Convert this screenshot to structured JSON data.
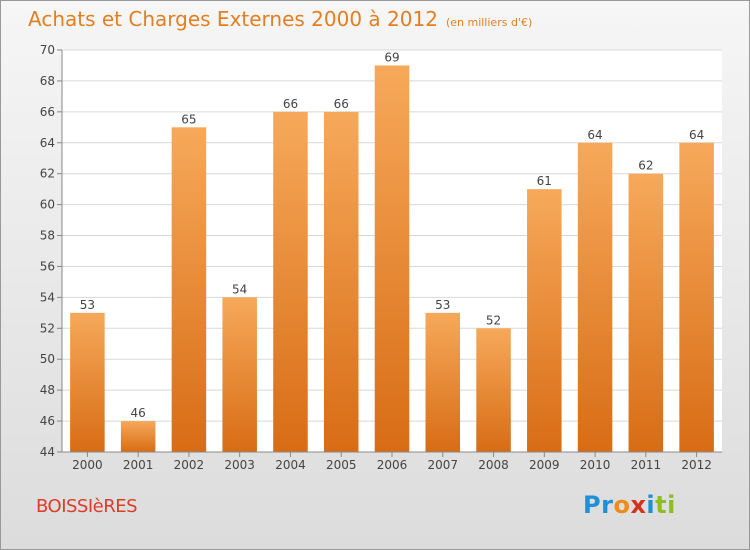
{
  "header": {
    "title": "Achats et Charges Externes 2000 à 2012",
    "unit": "(en milliers d'€)"
  },
  "footer": {
    "commune": "BOISSIèRES",
    "logo_letters": [
      "Pr",
      "o",
      "x",
      "i",
      "ti"
    ]
  },
  "colors": {
    "title": "#e37f20",
    "bar_top": "#f6a95a",
    "bar_bottom": "#d86c15",
    "commune": "#de3b2a"
  },
  "chart_data": {
    "type": "bar",
    "title": "Achats et Charges Externes 2000 à 2012",
    "subtitle": "(en milliers d'€)",
    "categories": [
      "2000",
      "2001",
      "2002",
      "2003",
      "2004",
      "2005",
      "2006",
      "2007",
      "2008",
      "2009",
      "2010",
      "2011",
      "2012"
    ],
    "values": [
      53,
      46,
      65,
      54,
      66,
      66,
      69,
      53,
      52,
      61,
      64,
      62,
      64
    ],
    "ylim": [
      44,
      70
    ],
    "yticks": [
      44,
      46,
      48,
      50,
      52,
      54,
      56,
      58,
      60,
      62,
      64,
      66,
      68,
      70
    ],
    "grid": true,
    "xlabel": "",
    "ylabel": ""
  }
}
